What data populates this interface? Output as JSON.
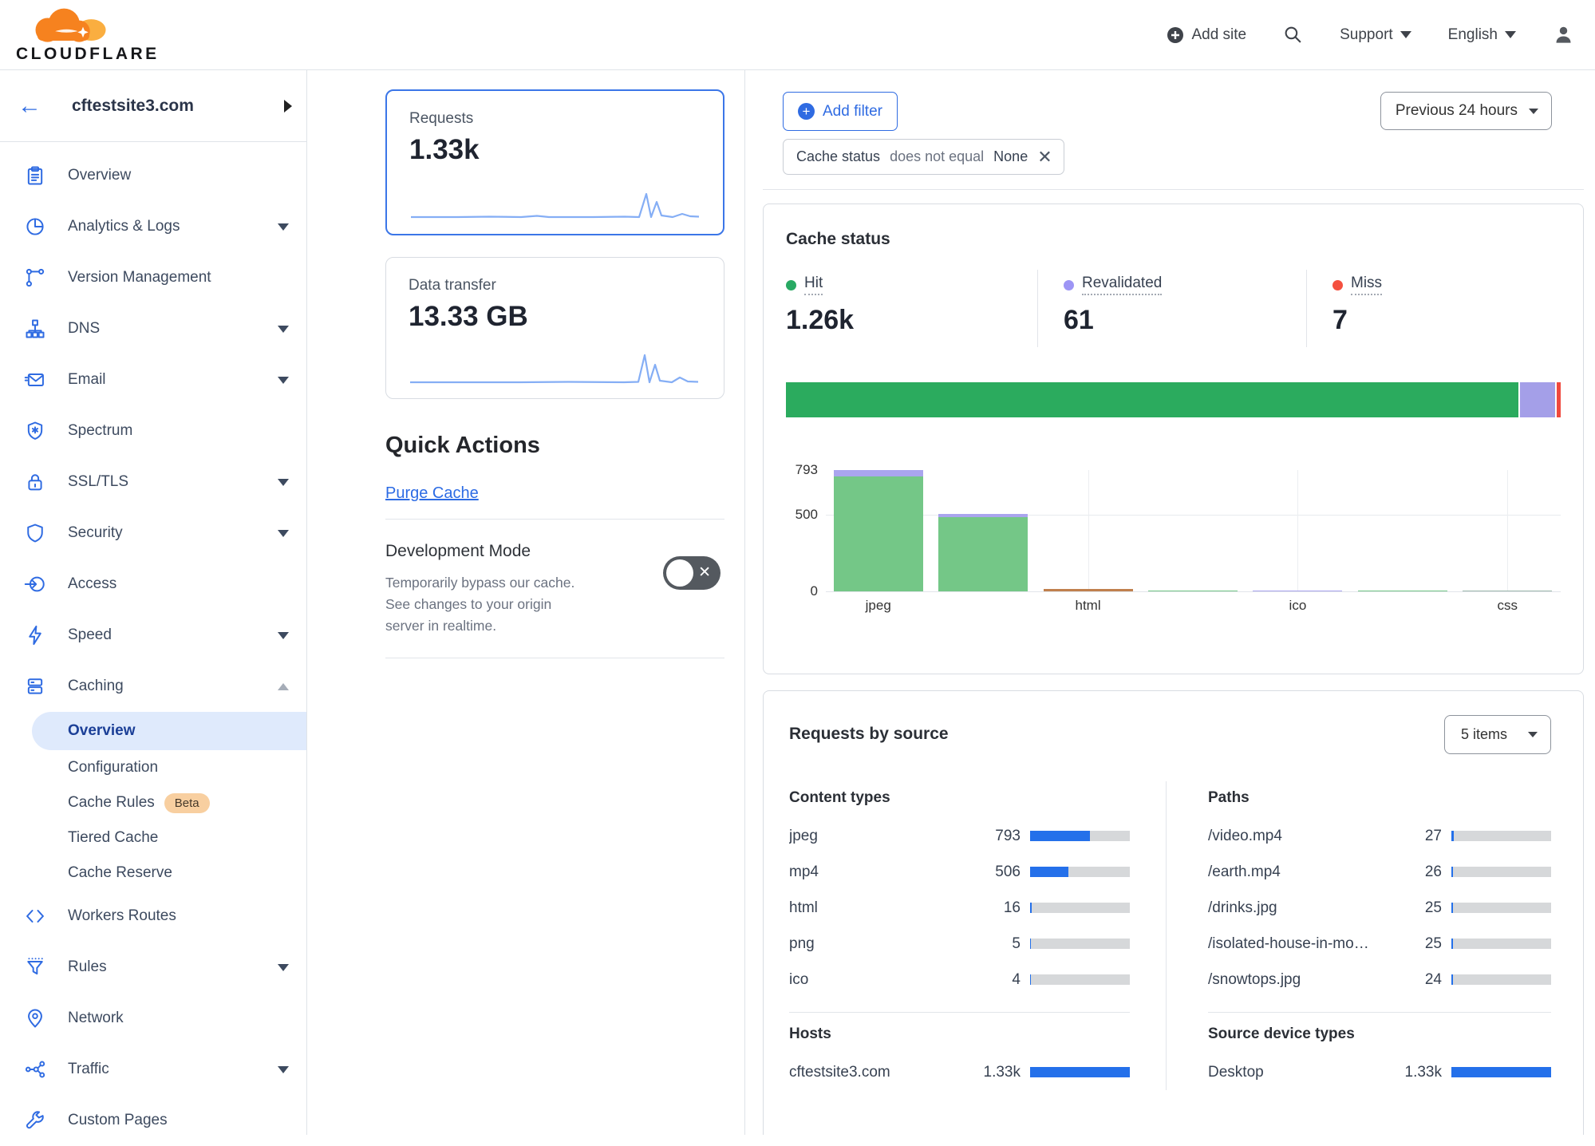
{
  "header": {
    "brand": "CLOUDFLARE",
    "add_site_label": "Add site",
    "support_label": "Support",
    "language_label": "English"
  },
  "sidebar": {
    "site_name": "cftestsite3.com",
    "items": [
      {
        "id": "overview",
        "label": "Overview",
        "icon": "clipboard-icon"
      },
      {
        "id": "analytics-logs",
        "label": "Analytics & Logs",
        "icon": "pie-chart-icon",
        "chevron": "down"
      },
      {
        "id": "version-management",
        "label": "Version Management",
        "icon": "branch-icon"
      },
      {
        "id": "dns",
        "label": "DNS",
        "icon": "sitemap-icon",
        "chevron": "down"
      },
      {
        "id": "email",
        "label": "Email",
        "icon": "envelope-icon",
        "chevron": "down"
      },
      {
        "id": "spectrum",
        "label": "Spectrum",
        "icon": "spectrum-shield-icon"
      },
      {
        "id": "ssl-tls",
        "label": "SSL/TLS",
        "icon": "lock-icon",
        "chevron": "down"
      },
      {
        "id": "security",
        "label": "Security",
        "icon": "shield-icon",
        "chevron": "down"
      },
      {
        "id": "access",
        "label": "Access",
        "icon": "access-icon"
      },
      {
        "id": "speed",
        "label": "Speed",
        "icon": "bolt-icon",
        "chevron": "down"
      },
      {
        "id": "caching",
        "label": "Caching",
        "icon": "server-stack-icon",
        "chevron": "up",
        "expanded": true,
        "children": [
          {
            "id": "caching-overview",
            "label": "Overview",
            "selected": true
          },
          {
            "id": "caching-configuration",
            "label": "Configuration"
          },
          {
            "id": "cache-rules",
            "label": "Cache Rules",
            "badge": "Beta"
          },
          {
            "id": "tiered-cache",
            "label": "Tiered Cache"
          },
          {
            "id": "cache-reserve",
            "label": "Cache Reserve"
          }
        ]
      },
      {
        "id": "workers-routes",
        "label": "Workers Routes",
        "icon": "code-brackets-icon"
      },
      {
        "id": "rules",
        "label": "Rules",
        "icon": "funnel-icon",
        "chevron": "down"
      },
      {
        "id": "network",
        "label": "Network",
        "icon": "location-pin-icon"
      },
      {
        "id": "traffic",
        "label": "Traffic",
        "icon": "share-nodes-icon",
        "chevron": "down"
      },
      {
        "id": "custom-pages",
        "label": "Custom Pages",
        "icon": "wrench-icon"
      }
    ]
  },
  "metrics": {
    "requests": {
      "label": "Requests",
      "value": "1.33k"
    },
    "data_transfer": {
      "label": "Data transfer",
      "value": "13.33 GB"
    }
  },
  "quick_actions": {
    "title": "Quick Actions",
    "purge_cache_label": "Purge Cache",
    "development_mode": {
      "title": "Development Mode",
      "description": "Temporarily bypass our cache. See changes to your origin server in realtime.",
      "state": "off"
    }
  },
  "filters": {
    "add_filter_label": "Add filter",
    "chip": {
      "field": "Cache status",
      "operator": "does not equal",
      "value": "None"
    },
    "time_range": "Previous 24 hours"
  },
  "cache_status": {
    "title": "Cache status",
    "stats": [
      {
        "label": "Hit",
        "value": "1.26k",
        "color": "#28a963"
      },
      {
        "label": "Revalidated",
        "value": "61",
        "color": "#9d95f5"
      },
      {
        "label": "Miss",
        "value": "7",
        "color": "#f4503f"
      }
    ]
  },
  "chart_data": [
    {
      "type": "bar",
      "subtype": "stacked-horizontal-summary",
      "title": "Cache status distribution",
      "segments": [
        {
          "label": "Hit",
          "value": 1260,
          "color": "#2bab5e"
        },
        {
          "label": "Revalidated",
          "value": 61,
          "color": "#a49fe8"
        },
        {
          "label": "Miss",
          "value": 7,
          "color": "#f0493e"
        }
      ]
    },
    {
      "type": "bar",
      "subtype": "stacked-vertical",
      "title": "Cache status by content type",
      "ymax": 793,
      "yticks": [
        793,
        500,
        0
      ],
      "gridline_at": 500,
      "tick_labels_shown": [
        "jpeg",
        "html",
        "ico",
        "css"
      ],
      "bars": [
        {
          "category": "jpeg",
          "total": 793,
          "segments": [
            {
              "label": "Hit",
              "value": 752,
              "color": "#74c787"
            },
            {
              "label": "Revalidated",
              "value": 41,
              "color": "#aaa5ee"
            }
          ]
        },
        {
          "category": "mp4",
          "total": 506,
          "segments": [
            {
              "label": "Hit",
              "value": 484,
              "color": "#74c787"
            },
            {
              "label": "Revalidated",
              "value": 22,
              "color": "#aaa5ee"
            }
          ]
        },
        {
          "category": "html",
          "total": 16,
          "segments": [
            {
              "label": "other",
              "value": 16,
              "color": "#c0804d"
            }
          ]
        },
        {
          "category": "png",
          "total": 5,
          "segments": [
            {
              "label": "Hit",
              "value": 5,
              "color": "#74c787"
            }
          ]
        },
        {
          "category": "ico",
          "total": 4,
          "segments": [
            {
              "label": "Revalidated",
              "value": 4,
              "color": "#aaa5ee"
            }
          ]
        },
        {
          "category": "",
          "total": 2,
          "segments": [
            {
              "label": "Hit",
              "value": 2,
              "color": "#74c787"
            }
          ]
        },
        {
          "category": "css",
          "total": 1,
          "segments": [
            {
              "label": "Hit",
              "value": 1,
              "color": "#9fb8ad"
            }
          ]
        }
      ]
    }
  ],
  "requests_by_source": {
    "title": "Requests by source",
    "items_select_value": "5 items",
    "bar_scale_max": 1330,
    "tables": [
      {
        "id": "content-types",
        "heading": "Content types",
        "rows": [
          {
            "label": "jpeg",
            "display": "793",
            "value": 793
          },
          {
            "label": "mp4",
            "display": "506",
            "value": 506
          },
          {
            "label": "html",
            "display": "16",
            "value": 16
          },
          {
            "label": "png",
            "display": "5",
            "value": 5
          },
          {
            "label": "ico",
            "display": "4",
            "value": 4
          }
        ]
      },
      {
        "id": "paths",
        "heading": "Paths",
        "rows": [
          {
            "label": "/video.mp4",
            "display": "27",
            "value": 27
          },
          {
            "label": "/earth.mp4",
            "display": "26",
            "value": 26
          },
          {
            "label": "/drinks.jpg",
            "display": "25",
            "value": 25
          },
          {
            "label": "/isolated-house-in-mo…",
            "display": "25",
            "value": 25
          },
          {
            "label": "/snowtops.jpg",
            "display": "24",
            "value": 24
          }
        ]
      },
      {
        "id": "hosts",
        "heading": "Hosts",
        "rows": [
          {
            "label": "cftestsite3.com",
            "display": "1.33k",
            "value": 1330
          }
        ]
      },
      {
        "id": "source-device-types",
        "heading": "Source device types",
        "rows": [
          {
            "label": "Desktop",
            "display": "1.33k",
            "value": 1330
          }
        ]
      }
    ]
  }
}
